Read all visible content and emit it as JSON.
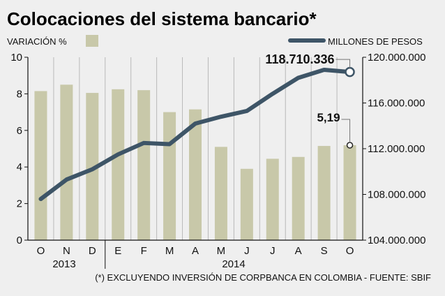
{
  "chart_data": {
    "type": "bar",
    "title": "Colocaciones del sistema bancario*",
    "categories": [
      "O",
      "N",
      "D",
      "E",
      "F",
      "M",
      "A",
      "M",
      "J",
      "J",
      "A",
      "S",
      "O"
    ],
    "year_labels": [
      "2013",
      "2014"
    ],
    "series": [
      {
        "name": "VARIACIÓN %",
        "type": "bar",
        "axis": "left",
        "values": [
          8.15,
          8.5,
          8.05,
          8.25,
          8.2,
          7.0,
          7.15,
          5.1,
          3.9,
          4.45,
          4.55,
          5.15,
          5.19
        ]
      },
      {
        "name": "MILLONES DE PESOS",
        "type": "line",
        "axis": "right",
        "values": [
          107600000,
          109300000,
          110200000,
          111500000,
          112500000,
          112400000,
          114200000,
          114800000,
          115300000,
          116800000,
          118200000,
          118900000,
          118710336
        ]
      }
    ],
    "y_left": {
      "ylim": [
        0,
        10
      ],
      "ticks": [
        "0",
        "2",
        "4",
        "6",
        "8",
        "10"
      ]
    },
    "y_right": {
      "ylim": [
        104000000,
        120000000
      ],
      "ticks": [
        "104.000.000",
        "108.000.000",
        "112.000.000",
        "116.000.000",
        "120.000.000"
      ]
    },
    "annotations": {
      "line_last": "118.710.336",
      "bar_last": "5,19"
    },
    "note": "(*) EXCLUYENDO INVERSIÓN DE CORPBANCA EN COLOMBIA - FUENTE: SBIF",
    "colors": {
      "bar": "#c8c8a9",
      "line": "#3e5567",
      "background": "#efefef"
    }
  }
}
